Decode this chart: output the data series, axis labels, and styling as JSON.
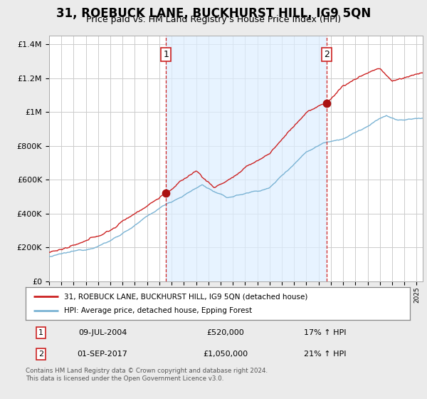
{
  "title": "31, ROEBUCK LANE, BUCKHURST HILL, IG9 5QN",
  "subtitle": "Price paid vs. HM Land Registry's House Price Index (HPI)",
  "title_fontsize": 12,
  "subtitle_fontsize": 9,
  "legend_line1": "31, ROEBUCK LANE, BUCKHURST HILL, IG9 5QN (detached house)",
  "legend_line2": "HPI: Average price, detached house, Epping Forest",
  "sale1_date": "09-JUL-2004",
  "sale1_price": "£520,000",
  "sale1_hpi": "17% ↑ HPI",
  "sale1_label": "1",
  "sale2_date": "01-SEP-2017",
  "sale2_price": "£1,050,000",
  "sale2_hpi": "21% ↑ HPI",
  "sale2_label": "2",
  "footnote": "Contains HM Land Registry data © Crown copyright and database right 2024.\nThis data is licensed under the Open Government Licence v3.0.",
  "hpi_color": "#7ab3d4",
  "price_color": "#cc2222",
  "sale_marker_color": "#aa1111",
  "shade_color": "#ddeeff",
  "background_color": "#ebebeb",
  "plot_bg_color": "#ffffff",
  "grid_color": "#cccccc",
  "ylim": [
    0,
    1450000
  ],
  "yticks": [
    0,
    200000,
    400000,
    600000,
    800000,
    1000000,
    1200000,
    1400000
  ],
  "xlim_start": 1995.0,
  "xlim_end": 2025.5,
  "sale1_x": 2004.54,
  "sale1_y": 520000,
  "sale2_x": 2017.67,
  "sale2_y": 1050000,
  "vline1_x": 2004.54,
  "vline2_x": 2017.67,
  "num_points": 370
}
